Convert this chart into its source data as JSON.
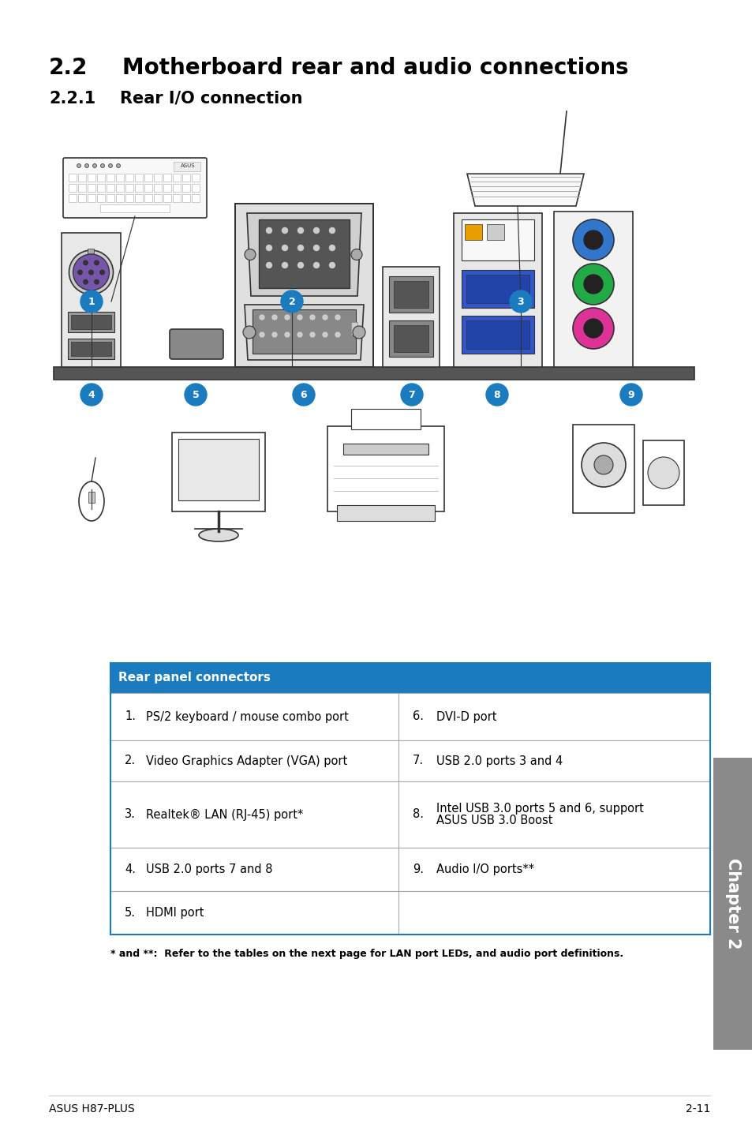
{
  "title1": "2.2",
  "title1_text": "Motherboard rear and audio connections",
  "title2": "2.2.1",
  "title2_text": "Rear I/O connection",
  "table_header": "Rear panel connectors",
  "table_header_bg": "#1a7bbf",
  "table_header_color": "#ffffff",
  "table_rows": [
    [
      "1.",
      "PS/2 keyboard / mouse combo port",
      "6.",
      "DVI-D port"
    ],
    [
      "2.",
      "Video Graphics Adapter (VGA) port",
      "7.",
      "USB 2.0 ports 3 and 4"
    ],
    [
      "3.",
      "Realtek® LAN (RJ-45) port*",
      "8.",
      "Intel USB 3.0 ports 5 and 6, support\nASUS USB 3.0 Boost"
    ],
    [
      "4.",
      "USB 2.0 ports 7 and 8",
      "9.",
      "Audio I/O ports**"
    ],
    [
      "5.",
      "HDMI port",
      "",
      ""
    ]
  ],
  "footnote": "* and **:  Refer to the tables on the next page for LAN port LEDs, and audio port definitions.",
  "footer_left": "ASUS H87-PLUS",
  "footer_right": "2-11",
  "chapter_label": "Chapter 2",
  "bg_color": "#ffffff",
  "sidebar_color": "#8a8a8a",
  "table_border_color": "#1a7bbf",
  "table_line_color": "#aaaaaa",
  "circle_color": "#1a7bbf",
  "circle_text_color": "#ffffff",
  "lw": 1.2
}
